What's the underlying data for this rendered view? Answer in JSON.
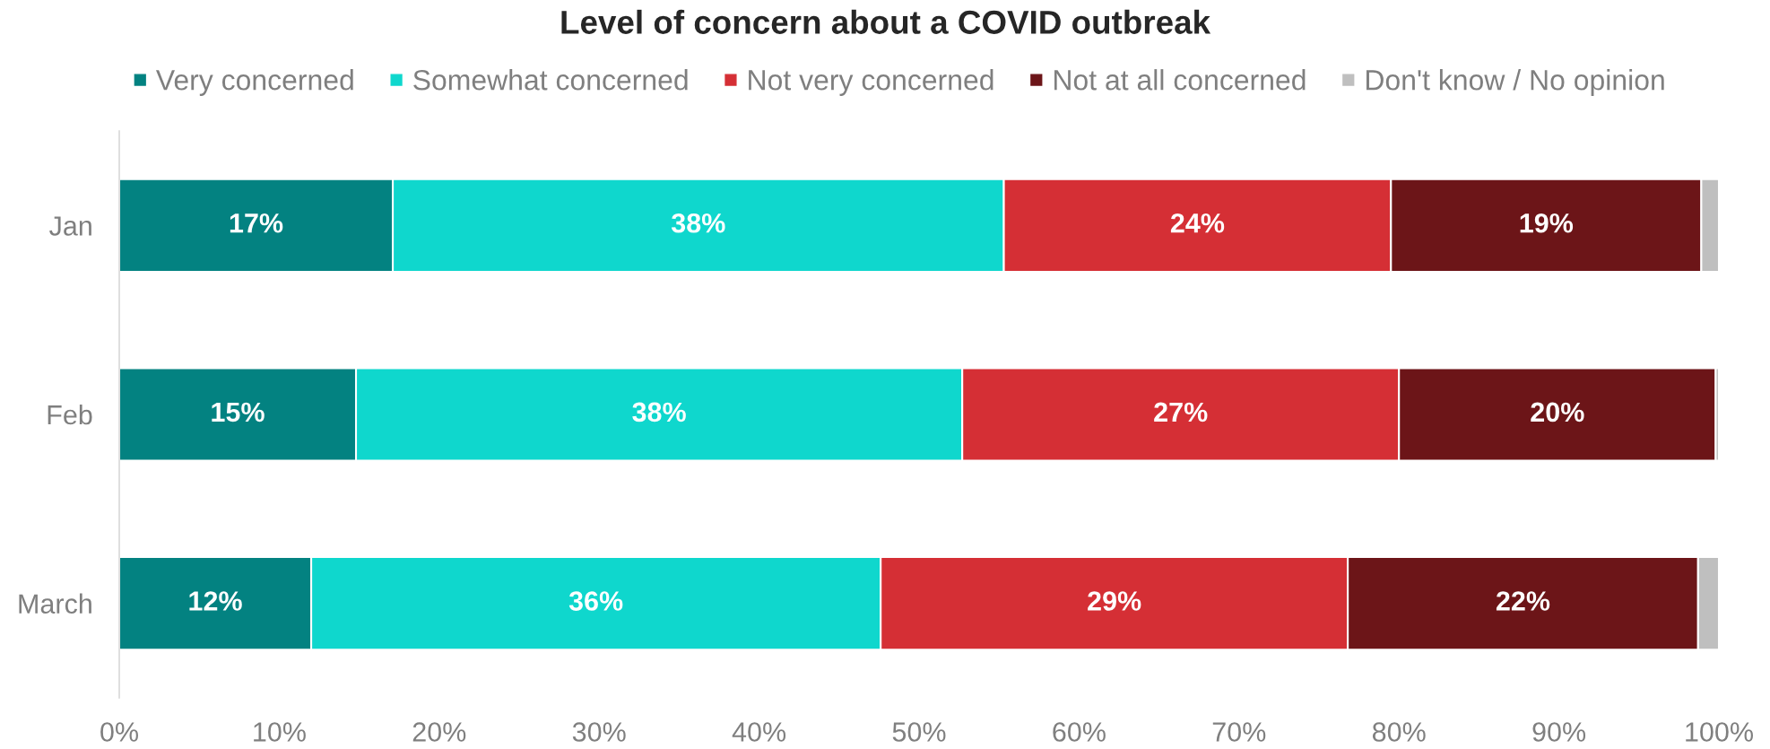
{
  "chart_data": {
    "type": "bar",
    "orientation": "horizontal",
    "stacked": true,
    "title": "Level of concern about a COVID outbreak",
    "categories": [
      "Jan",
      "Feb",
      "March"
    ],
    "series": [
      {
        "name": "Very concerned",
        "color": "#038281",
        "values": [
          17.1,
          14.8,
          12.0
        ],
        "value_labels": [
          "17%",
          "15%",
          "12%"
        ]
      },
      {
        "name": "Somewhat concerned",
        "color": "#0fd7cd",
        "values": [
          38.2,
          37.9,
          35.6
        ],
        "value_labels": [
          "38%",
          "38%",
          "36%"
        ]
      },
      {
        "name": "Not very concerned",
        "color": "#d52f35",
        "values": [
          24.2,
          27.3,
          29.2
        ],
        "value_labels": [
          "24%",
          "27%",
          "29%"
        ]
      },
      {
        "name": "Not at all concerned",
        "color": "#6c1518",
        "values": [
          19.4,
          19.8,
          21.9
        ],
        "value_labels": [
          "19%",
          "20%",
          "22%"
        ]
      },
      {
        "name": "Don't know / No opinion",
        "color": "#bfbfbf",
        "values": [
          1.1,
          0.2,
          1.3
        ]
      }
    ],
    "xlim": [
      0,
      100
    ],
    "xticks": [
      {
        "value": 0,
        "label": "0%"
      },
      {
        "value": 10,
        "label": "10%"
      },
      {
        "value": 20,
        "label": "20%"
      },
      {
        "value": 30,
        "label": "30%"
      },
      {
        "value": 40,
        "label": "40%"
      },
      {
        "value": 50,
        "label": "50%"
      },
      {
        "value": 60,
        "label": "60%"
      },
      {
        "value": 70,
        "label": "70%"
      },
      {
        "value": 80,
        "label": "80%"
      },
      {
        "value": 90,
        "label": "90%"
      },
      {
        "value": 100,
        "label": "100%"
      }
    ],
    "legend": "top"
  }
}
